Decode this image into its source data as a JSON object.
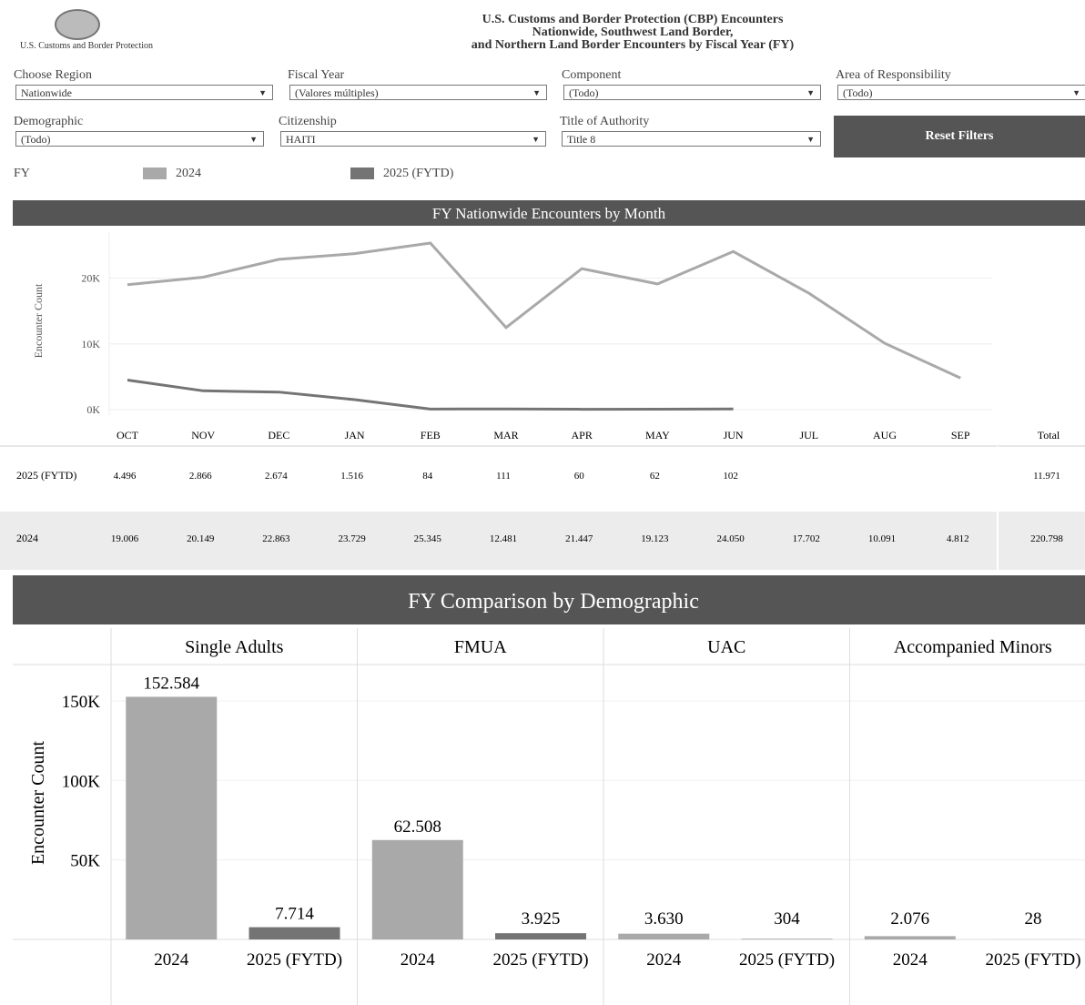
{
  "header": {
    "logo_text": "U.S. Customs and Border Protection",
    "title_lines": [
      "U.S. Customs and Border Protection (CBP) Encounters",
      "Nationwide, Southwest Land Border,",
      "and Northern Land Border Encounters by Fiscal Year (FY)"
    ]
  },
  "filters": [
    {
      "label": "Choose Region",
      "value": "Nationwide"
    },
    {
      "label": "Fiscal Year",
      "value": "(Valores múltiples)"
    },
    {
      "label": "Component",
      "value": "(Todo)"
    },
    {
      "label": "Area of Responsibility",
      "value": "(Todo)"
    },
    {
      "label": "Demographic",
      "value": "(Todo)"
    },
    {
      "label": "Citizenship",
      "value": "HAITI"
    },
    {
      "label": "Title of Authority",
      "value": "Title 8"
    }
  ],
  "reset_button": "Reset Filters",
  "legend": {
    "title": "FY"
  },
  "chart_data": [
    {
      "type": "line",
      "title": "FY Nationwide Encounters by Month",
      "y_label": "Encounter Count",
      "categories": [
        "OCT",
        "NOV",
        "DEC",
        "JAN",
        "FEB",
        "MAR",
        "APR",
        "MAY",
        "JUN",
        "JUL",
        "AUG",
        "SEP"
      ],
      "total_header": "Total",
      "series": [
        {
          "name": "2024",
          "color": "#a9a9a9",
          "values": [
            19006,
            20149,
            22863,
            23729,
            25345,
            12481,
            21447,
            19123,
            24050,
            17702,
            10091,
            4812
          ],
          "value_labels": [
            "19.006",
            "20.149",
            "22.863",
            "23.729",
            "25.345",
            "12.481",
            "21.447",
            "19.123",
            "24.050",
            "17.702",
            "10.091",
            "4.812"
          ],
          "total": "220.798"
        },
        {
          "name": "2025 (FYTD)",
          "color": "#747474",
          "values": [
            4496,
            2866,
            2674,
            1516,
            84,
            111,
            60,
            62,
            102,
            null,
            null,
            null
          ],
          "value_labels": [
            "4.496",
            "2.866",
            "2.674",
            "1.516",
            "84",
            "111",
            "60",
            "62",
            "102",
            null,
            null,
            null
          ],
          "total": "11.971"
        }
      ],
      "ylim": [
        0,
        27000
      ],
      "yticks": [
        {
          "value": 0,
          "label": "0K"
        },
        {
          "value": 10000,
          "label": "10K"
        },
        {
          "value": 20000,
          "label": "20K"
        }
      ],
      "grid": true
    },
    {
      "type": "bar",
      "title": "FY Comparison by Demographic",
      "y_label": "Encounter Count",
      "groups": [
        "Single Adults",
        "FMUA",
        "UAC",
        "Accompanied Minors"
      ],
      "series": [
        {
          "name": "2024",
          "color": "#a9a9a9",
          "values": [
            152584,
            62508,
            3630,
            2076
          ],
          "value_labels": [
            "152.584",
            "62.508",
            "3.630",
            "2.076"
          ]
        },
        {
          "name": "2025 (FYTD)",
          "color": "#747474",
          "values": [
            7714,
            3925,
            304,
            28
          ],
          "value_labels": [
            "7.714",
            "3.925",
            "304",
            "28"
          ]
        }
      ],
      "ylim": [
        0,
        170000
      ],
      "yticks": [
        {
          "value": 50000,
          "label": "50K"
        },
        {
          "value": 100000,
          "label": "100K"
        },
        {
          "value": 150000,
          "label": "150K"
        }
      ],
      "grid": true
    }
  ]
}
